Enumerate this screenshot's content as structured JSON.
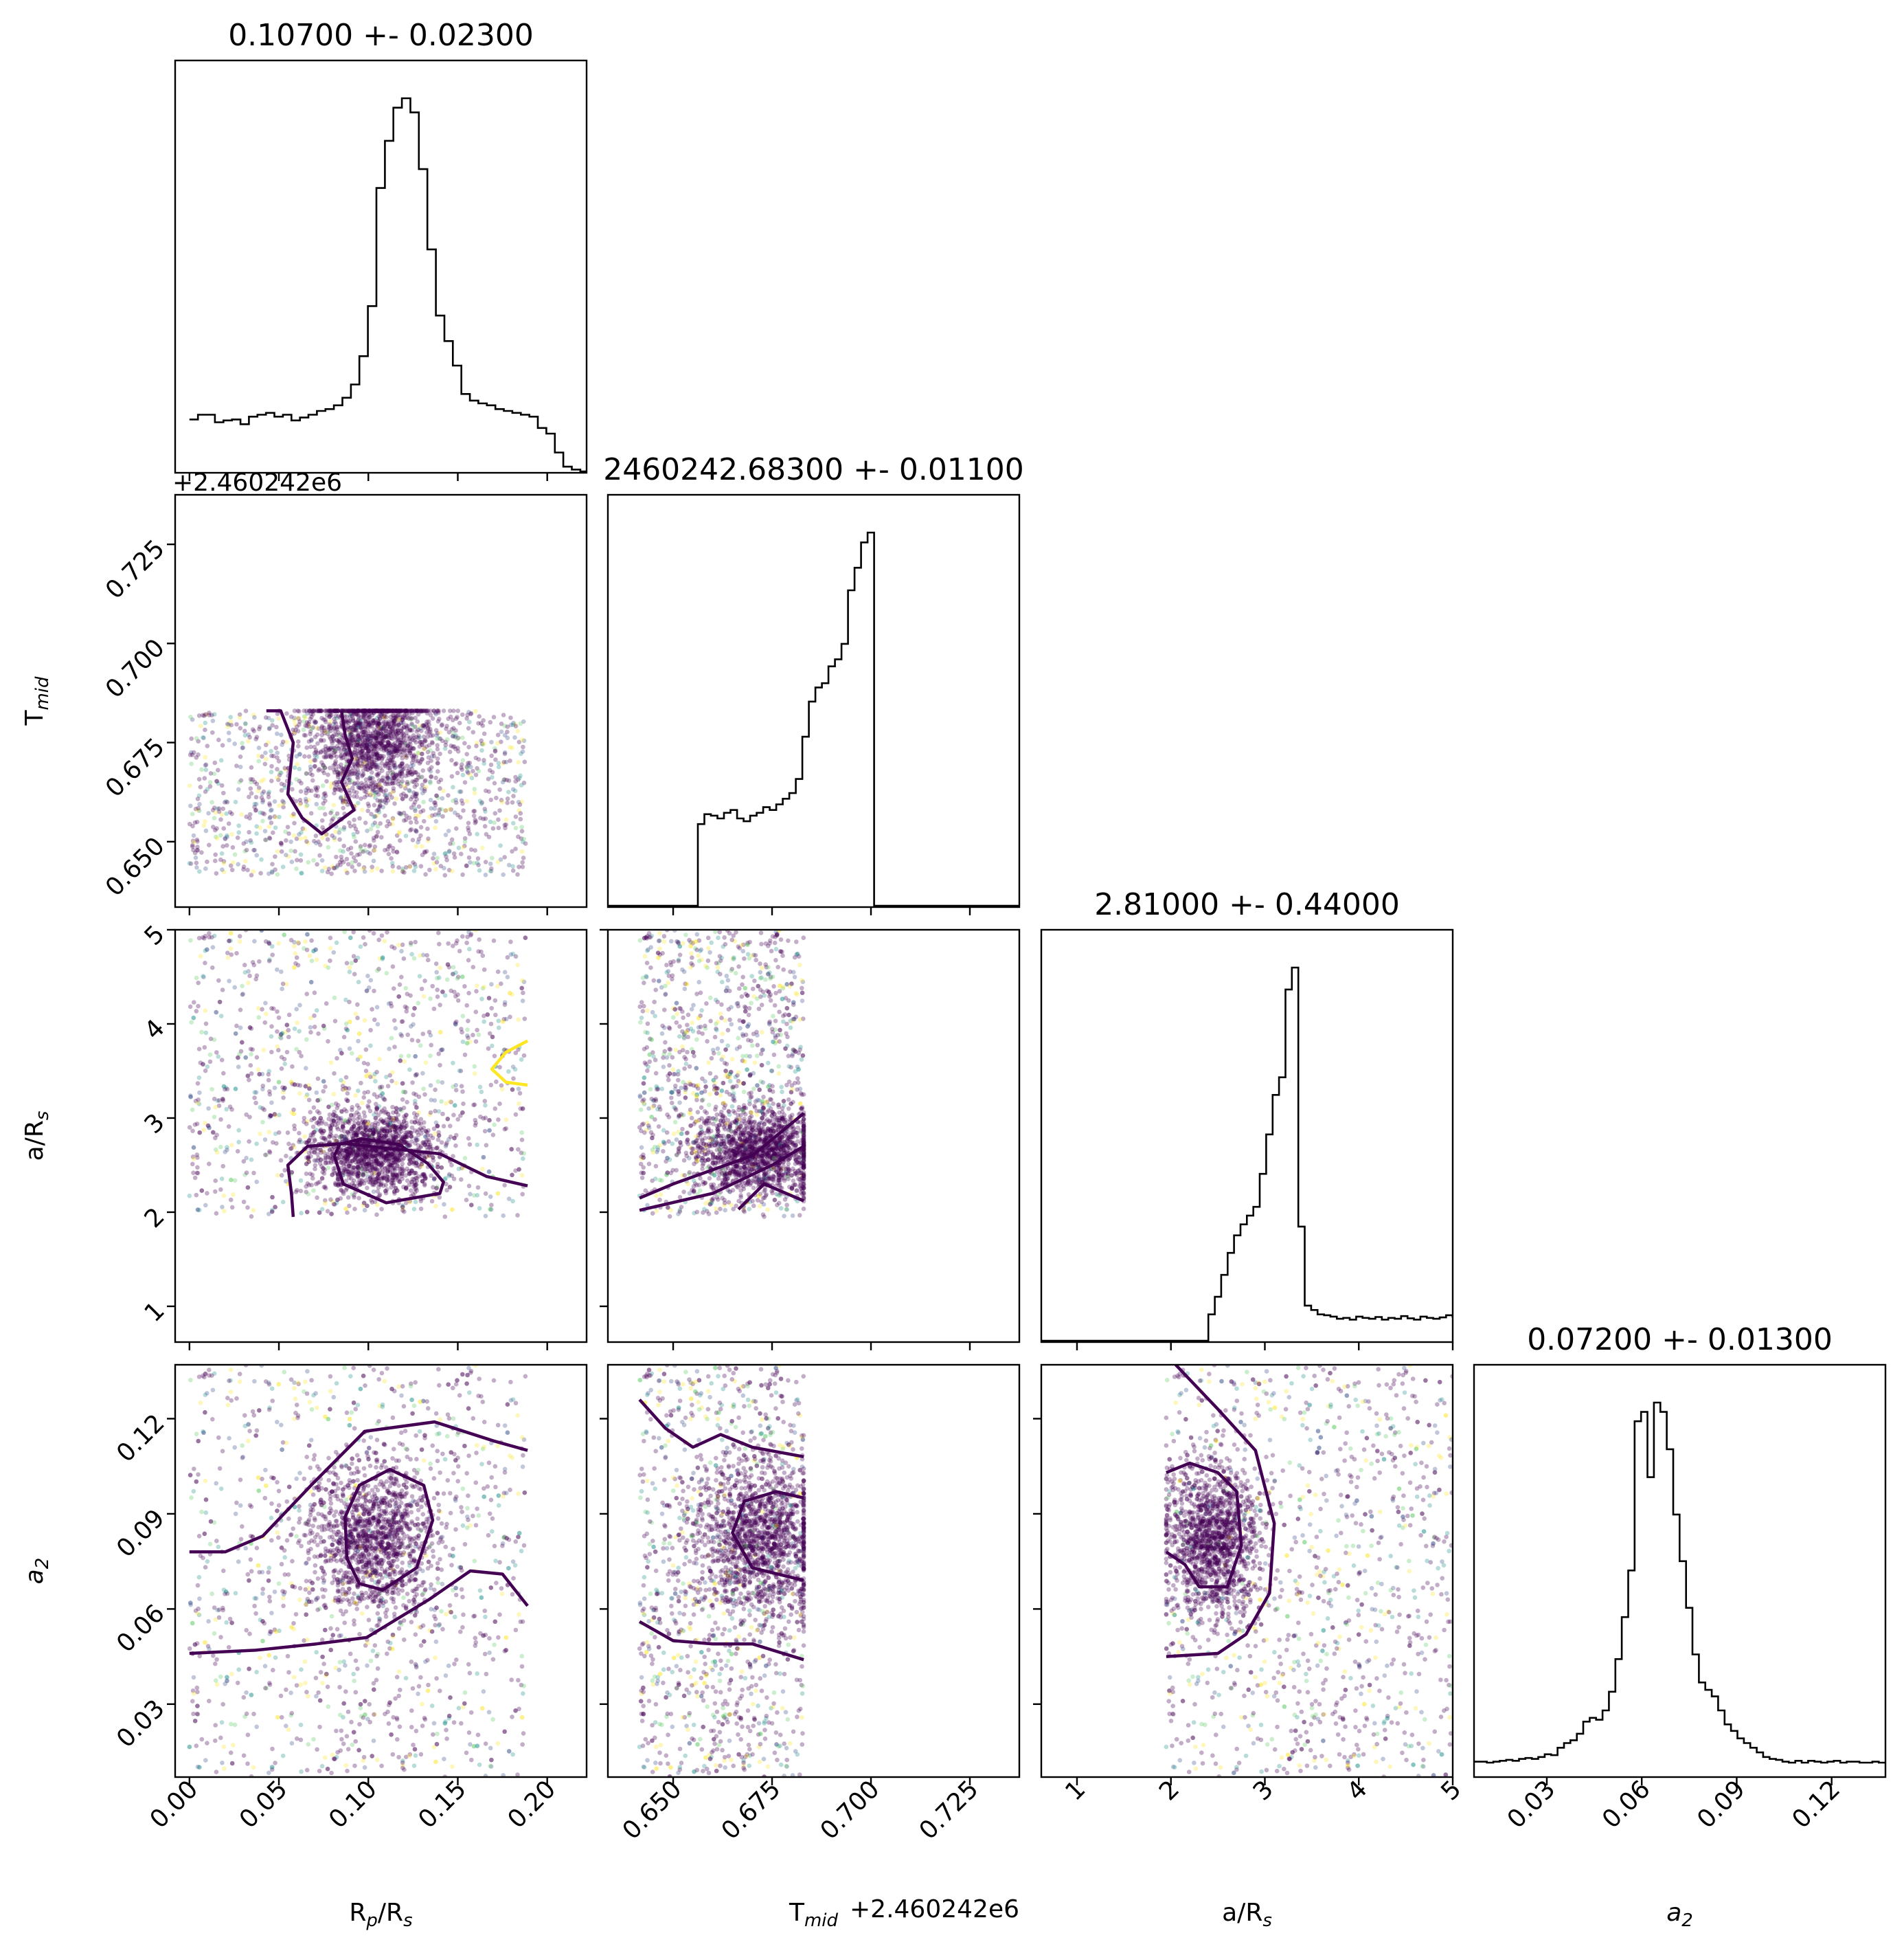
{
  "chart_data": {
    "type": "scatter",
    "params": [
      {
        "key": "rp",
        "label": "R",
        "label_sub": "p",
        "label_rest": "/R",
        "label_sub2": "s",
        "range": [
          -0.008,
          0.222
        ],
        "ticks": [
          0.0,
          0.05,
          0.1,
          0.15,
          0.2
        ],
        "tick_labels": [
          "0.00",
          "0.05",
          "0.10",
          "0.15",
          "0.20"
        ],
        "title": "0.10700 +- 0.02300",
        "offset": ""
      },
      {
        "key": "tmid",
        "label": "T",
        "label_sub": "mid",
        "label_rest": "",
        "label_sub2": "",
        "range": [
          0.6335,
          0.7375
        ],
        "ticks": [
          0.65,
          0.675,
          0.7,
          0.725
        ],
        "tick_labels": [
          "0.650",
          "0.675",
          "0.700",
          "0.725"
        ],
        "title": "2460242.68300 +- 0.01100",
        "offset": "+2.460242e6"
      },
      {
        "key": "ars",
        "label": "a/R",
        "label_sub": "s",
        "label_rest": "",
        "label_sub2": "",
        "range": [
          0.62,
          5.0
        ],
        "ticks": [
          1,
          2,
          3,
          4,
          5
        ],
        "tick_labels": [
          "1",
          "2",
          "3",
          "4",
          "5"
        ],
        "title": "2.81000 +- 0.44000",
        "offset": ""
      },
      {
        "key": "a2",
        "label": "a",
        "label_sub": "2",
        "label_rest": "",
        "label_sub2": "",
        "italic": true,
        "range": [
          0.007,
          0.137
        ],
        "ticks": [
          0.03,
          0.06,
          0.09,
          0.12
        ],
        "tick_labels": [
          "0.03",
          "0.06",
          "0.09",
          "0.12"
        ],
        "title": "0.07200 +- 0.01300",
        "offset": ""
      }
    ],
    "histograms": {
      "rp": {
        "bin_start": 0.0,
        "bin_width": 0.00475,
        "counts": [
          55,
          60,
          60,
          52,
          54,
          55,
          50,
          58,
          60,
          62,
          58,
          60,
          54,
          57,
          60,
          64,
          66,
          70,
          78,
          92,
          122,
          175,
          300,
          350,
          385,
          395,
          380,
          320,
          235,
          165,
          138,
          112,
          82,
          75,
          72,
          70,
          66,
          64,
          62,
          60,
          58,
          46,
          40,
          20,
          5,
          2,
          0,
          0
        ]
      },
      "tmid": {
        "bin_start": 0.6315,
        "bin_width": 0.00165,
        "counts": [
          0,
          0,
          0,
          0,
          0,
          0,
          0,
          0,
          0,
          0,
          0,
          0,
          0,
          0,
          0,
          58,
          65,
          64,
          62,
          66,
          68,
          62,
          60,
          64,
          66,
          70,
          68,
          72,
          76,
          80,
          90,
          120,
          145,
          155,
          158,
          170,
          175,
          186,
          224,
          240,
          258,
          265,
          0,
          0,
          0,
          0,
          0,
          0,
          0,
          0,
          0,
          0,
          0,
          0,
          0,
          0,
          0,
          0,
          0,
          0,
          0,
          0,
          0,
          0,
          0
        ]
      },
      "ars": {
        "bin_start": 0.62,
        "bin_width": 0.0684,
        "counts": [
          0,
          0,
          0,
          0,
          0,
          0,
          0,
          0,
          0,
          0,
          0,
          0,
          0,
          0,
          0,
          0,
          0,
          0,
          0,
          0,
          0,
          0,
          0,
          0,
          0,
          0,
          60,
          100,
          150,
          200,
          240,
          265,
          285,
          305,
          380,
          470,
          560,
          600,
          800,
          850,
          260,
          80,
          70,
          60,
          58,
          55,
          50,
          52,
          48,
          55,
          52,
          50,
          54,
          48,
          52,
          50,
          56,
          51,
          48,
          55,
          52,
          50,
          53,
          58,
          55
        ]
      },
      "a2": {
        "bin_start": 0.007,
        "bin_width": 0.00203,
        "counts": [
          15,
          15,
          14,
          15,
          16,
          17,
          16,
          18,
          19,
          18,
          20,
          23,
          22,
          30,
          35,
          38,
          45,
          58,
          62,
          60,
          70,
          90,
          125,
          170,
          220,
          380,
          390,
          320,
          400,
          390,
          350,
          280,
          230,
          180,
          130,
          100,
          92,
          85,
          70,
          55,
          48,
          40,
          35,
          30,
          25,
          20,
          18,
          17,
          15,
          14,
          16,
          14,
          16,
          15,
          14,
          15,
          16,
          14,
          15,
          15,
          14,
          14,
          15,
          14
        ]
      }
    },
    "scatter_models": {
      "rp": {
        "core": [
          0.103,
          0.115
        ],
        "core_sd": [
          0.018,
          0.016
        ],
        "uniform": [
          0.0,
          0.188
        ]
      },
      "tmid": {
        "core": [
          0.672,
          0.676
        ],
        "core_sd": [
          0.008,
          0.008
        ],
        "uniform": [
          0.6415,
          0.683
        ]
      },
      "ars": {
        "core": [
          2.45,
          2.65
        ],
        "core_sd": [
          0.25,
          0.22
        ],
        "uniform": [
          1.95,
          5.0
        ]
      },
      "a2": {
        "core": [
          0.081,
          0.082
        ],
        "core_sd": [
          0.012,
          0.012
        ],
        "uniform": [
          0.007,
          0.137
        ]
      }
    },
    "contours": {
      "1_0": [
        [
          [
            0.043,
            0.683
          ],
          [
            0.051,
            0.683
          ],
          [
            0.058,
            0.675
          ],
          [
            0.055,
            0.662
          ],
          [
            0.063,
            0.656
          ],
          [
            0.074,
            0.652
          ],
          [
            0.092,
            0.658
          ],
          [
            0.085,
            0.665
          ],
          [
            0.091,
            0.671
          ],
          [
            0.087,
            0.677
          ],
          [
            0.085,
            0.683
          ]
        ]
      ],
      "2_0": [
        [
          [
            0.058,
            1.95
          ],
          [
            0.057,
            2.2
          ],
          [
            0.055,
            2.5
          ],
          [
            0.066,
            2.7
          ],
          [
            0.087,
            2.73
          ],
          [
            0.11,
            2.68
          ],
          [
            0.14,
            2.62
          ],
          [
            0.166,
            2.38
          ],
          [
            0.189,
            2.28
          ]
        ],
        [
          [
            0.081,
            2.6
          ],
          [
            0.086,
            2.3
          ],
          [
            0.11,
            2.1
          ],
          [
            0.14,
            2.2
          ],
          [
            0.142,
            2.32
          ],
          [
            0.133,
            2.52
          ],
          [
            0.117,
            2.72
          ],
          [
            0.096,
            2.78
          ],
          [
            0.084,
            2.72
          ],
          [
            0.081,
            2.6
          ]
        ],
        [
          [
            0.189,
            3.35
          ],
          [
            0.177,
            3.38
          ],
          [
            0.169,
            3.52
          ],
          [
            0.177,
            3.7
          ],
          [
            0.189,
            3.82
          ]
        ]
      ],
      "3_0": [
        [
          [
            0.0,
            0.078
          ],
          [
            0.02,
            0.078
          ],
          [
            0.041,
            0.083
          ],
          [
            0.068,
            0.099
          ],
          [
            0.098,
            0.116
          ],
          [
            0.137,
            0.119
          ],
          [
            0.17,
            0.113
          ],
          [
            0.189,
            0.11
          ]
        ],
        [
          [
            0.0,
            0.046
          ],
          [
            0.037,
            0.047
          ],
          [
            0.071,
            0.049
          ],
          [
            0.099,
            0.051
          ],
          [
            0.134,
            0.063
          ],
          [
            0.157,
            0.072
          ],
          [
            0.175,
            0.071
          ],
          [
            0.189,
            0.061
          ]
        ],
        [
          [
            0.088,
            0.076
          ],
          [
            0.087,
            0.089
          ],
          [
            0.095,
            0.099
          ],
          [
            0.112,
            0.104
          ],
          [
            0.131,
            0.099
          ],
          [
            0.136,
            0.088
          ],
          [
            0.127,
            0.073
          ],
          [
            0.108,
            0.066
          ],
          [
            0.095,
            0.068
          ],
          [
            0.088,
            0.076
          ]
        ]
      ],
      "2_1": [
        [
          [
            0.6415,
            2.02
          ],
          [
            0.66,
            2.2
          ],
          [
            0.675,
            2.5
          ],
          [
            0.683,
            2.7
          ]
        ],
        [
          [
            0.6415,
            2.15
          ],
          [
            0.65,
            2.3
          ],
          [
            0.66,
            2.45
          ],
          [
            0.67,
            2.6
          ],
          [
            0.683,
            3.05
          ]
        ],
        [
          [
            0.6665,
            2.03
          ],
          [
            0.673,
            2.3
          ],
          [
            0.683,
            2.12
          ]
        ]
      ],
      "3_1": [
        [
          [
            0.6415,
            0.126
          ],
          [
            0.648,
            0.117
          ],
          [
            0.655,
            0.111
          ],
          [
            0.662,
            0.115
          ],
          [
            0.67,
            0.111
          ],
          [
            0.683,
            0.108
          ]
        ],
        [
          [
            0.6415,
            0.056
          ],
          [
            0.65,
            0.05
          ],
          [
            0.66,
            0.049
          ],
          [
            0.67,
            0.049
          ],
          [
            0.683,
            0.044
          ]
        ],
        [
          [
            0.683,
            0.095
          ],
          [
            0.676,
            0.097
          ],
          [
            0.668,
            0.094
          ],
          [
            0.665,
            0.084
          ],
          [
            0.67,
            0.073
          ],
          [
            0.683,
            0.069
          ]
        ]
      ],
      "3_2": [
        [
          [
            2.05,
            0.137
          ],
          [
            2.5,
            0.123
          ],
          [
            2.9,
            0.11
          ],
          [
            3.1,
            0.087
          ],
          [
            3.05,
            0.065
          ],
          [
            2.8,
            0.052
          ],
          [
            2.5,
            0.046
          ],
          [
            1.95,
            0.045
          ]
        ],
        [
          [
            1.95,
            0.103
          ],
          [
            2.2,
            0.106
          ],
          [
            2.5,
            0.103
          ],
          [
            2.7,
            0.097
          ],
          [
            2.75,
            0.08
          ],
          [
            2.6,
            0.067
          ],
          [
            2.3,
            0.067
          ],
          [
            2.15,
            0.074
          ],
          [
            1.95,
            0.078
          ]
        ]
      ]
    },
    "colors": {
      "line": "#000000",
      "contour": "#440154",
      "contour_hi": "#fde725",
      "points": [
        "#440154",
        "#3b528b",
        "#21918c",
        "#5ec962",
        "#fde725"
      ]
    }
  }
}
